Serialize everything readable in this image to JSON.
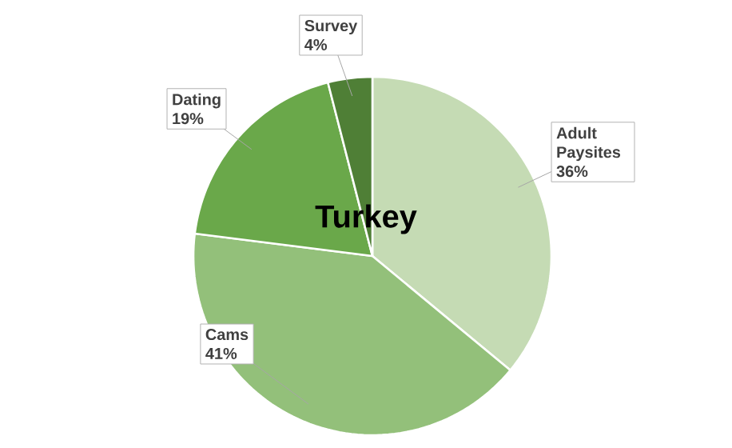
{
  "chart_data": {
    "type": "pie",
    "title": "Turkey",
    "categories": [
      "Adult Paysites",
      "Cams",
      "Dating",
      "Survey"
    ],
    "values": [
      36,
      41,
      19,
      4
    ],
    "value_labels": [
      "36%",
      "41%",
      "19%",
      "4%"
    ],
    "colors": [
      "#c5dbb4",
      "#93c07a",
      "#6aa84a",
      "#4f7f36"
    ]
  }
}
